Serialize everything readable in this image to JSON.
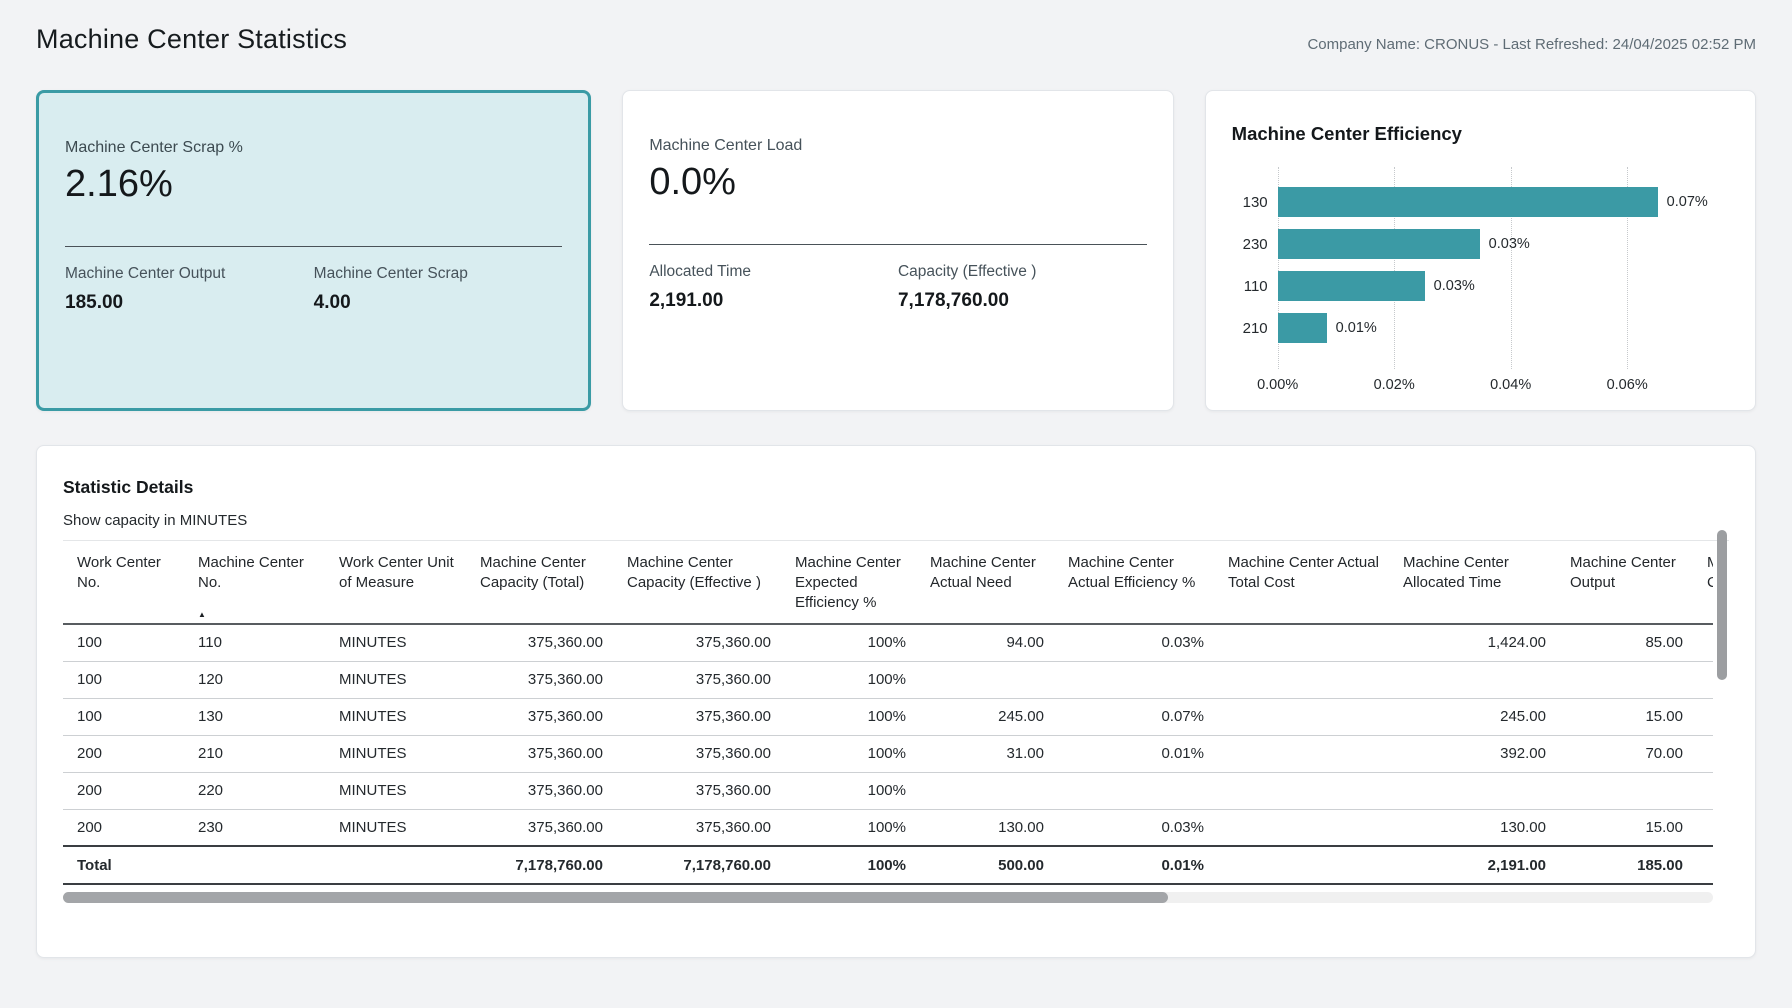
{
  "page": {
    "title": "Machine Center Statistics",
    "meta": "Company Name: CRONUS - Last Refreshed: 24/04/2025 02:52 PM"
  },
  "colors": {
    "accent_teal": "#3b9aa5",
    "highlight_card_bg": "#d9edf0",
    "highlight_card_border": "#3a9ba5",
    "page_bg": "#f2f3f5"
  },
  "cards": {
    "scrap": {
      "title": "Machine Center Scrap %",
      "value": "2.16%",
      "subs": [
        {
          "label": "Machine Center Output",
          "value": "185.00"
        },
        {
          "label": "Machine Center Scrap",
          "value": "4.00"
        }
      ]
    },
    "load": {
      "title": "Machine Center Load",
      "value": "0.0%",
      "subs": [
        {
          "label": "Allocated Time",
          "value": "2,191.00"
        },
        {
          "label": "Capacity (Effective )",
          "value": "7,178,760.00"
        }
      ]
    }
  },
  "chart_data": {
    "type": "bar",
    "orientation": "horizontal",
    "title": "Machine Center Efficiency",
    "categories": [
      "130",
      "230",
      "110",
      "210"
    ],
    "values": [
      0.0653,
      0.0347,
      0.0252,
      0.0084
    ],
    "value_labels": [
      "0.07%",
      "0.03%",
      "0.03%",
      "0.01%"
    ],
    "x_ticks": [
      "0.00%",
      "0.02%",
      "0.04%",
      "0.06%"
    ],
    "x_tick_values": [
      0.0,
      0.02,
      0.04,
      0.06
    ],
    "xlim": [
      0,
      0.078
    ],
    "xlabel": "",
    "ylabel": "",
    "grid": "dotted-vertical",
    "legend": "none",
    "bar_color": "#3b9aa5"
  },
  "details": {
    "title": "Statistic Details",
    "subtitle": "Show capacity in MINUTES",
    "sorted_column_index": 1,
    "sort_direction": "ascending",
    "columns": [
      "Work Center No.",
      "Machine Center No.",
      "Work Center Unit of Measure",
      "Machine Center Capacity (Total)",
      "Machine Center Capacity (Effective )",
      "Machine Center Expected Efficiency %",
      "Machine Center Actual Need",
      "Machine Center Actual Efficiency %",
      "Machine Center Actual Total Cost",
      "Machine Center Allocated Time",
      "Machine Center Output",
      "Machine Center Scrap"
    ],
    "rows": [
      [
        "100",
        "110",
        "MINUTES",
        "375,360.00",
        "375,360.00",
        "100%",
        "94.00",
        "0.03%",
        "",
        "1,424.00",
        "85.00",
        ""
      ],
      [
        "100",
        "120",
        "MINUTES",
        "375,360.00",
        "375,360.00",
        "100%",
        "",
        "",
        "",
        "",
        "",
        ""
      ],
      [
        "100",
        "130",
        "MINUTES",
        "375,360.00",
        "375,360.00",
        "100%",
        "245.00",
        "0.07%",
        "",
        "245.00",
        "15.00",
        ""
      ],
      [
        "200",
        "210",
        "MINUTES",
        "375,360.00",
        "375,360.00",
        "100%",
        "31.00",
        "0.01%",
        "",
        "392.00",
        "70.00",
        ""
      ],
      [
        "200",
        "220",
        "MINUTES",
        "375,360.00",
        "375,360.00",
        "100%",
        "",
        "",
        "",
        "",
        "",
        ""
      ],
      [
        "200",
        "230",
        "MINUTES",
        "375,360.00",
        "375,360.00",
        "100%",
        "130.00",
        "0.03%",
        "",
        "130.00",
        "15.00",
        ""
      ]
    ],
    "total_row": [
      "Total",
      "",
      "",
      "7,178,760.00",
      "7,178,760.00",
      "100%",
      "500.00",
      "0.01%",
      "",
      "2,191.00",
      "185.00",
      ""
    ]
  }
}
